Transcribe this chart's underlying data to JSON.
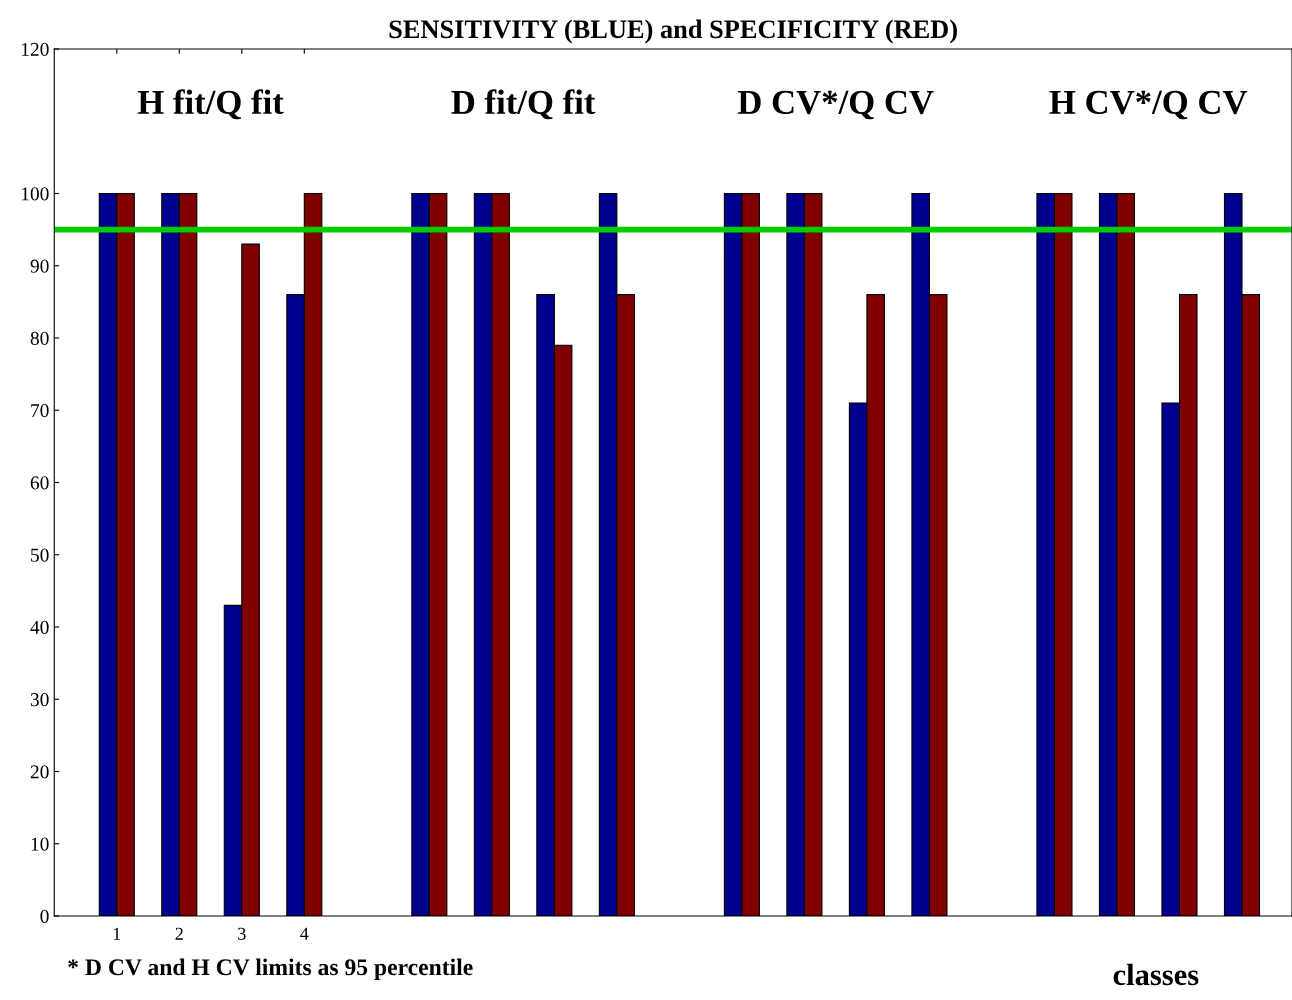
{
  "chart_data": {
    "type": "bar",
    "title": "SENSITIVITY (BLUE) and SPECIFICITY (RED)",
    "xlabel": "classes",
    "x": [
      1,
      2,
      3,
      4,
      6,
      7,
      8,
      9,
      11,
      12,
      13,
      14,
      16,
      17,
      18,
      19
    ],
    "series": [
      {
        "color": "#000090",
        "values": [
          100,
          100,
          43,
          86,
          100,
          100,
          86,
          100,
          100,
          100,
          71,
          100,
          100,
          100,
          71,
          100
        ]
      },
      {
        "color": "#800000",
        "values": [
          100,
          100,
          93,
          100,
          100,
          100,
          79,
          86,
          100,
          100,
          86,
          86,
          100,
          100,
          86,
          86
        ]
      }
    ],
    "xlim": [
      0,
      19.8
    ],
    "xticks": [
      1,
      2,
      3,
      4
    ],
    "ylim": [
      0,
      120
    ],
    "yticks": [
      0,
      10,
      20,
      30,
      40,
      50,
      60,
      70,
      80,
      90,
      100,
      120
    ],
    "ref_lines": [
      {
        "axis": "y",
        "value": 95,
        "color": "#00cc00"
      }
    ],
    "annotations": [
      "H fit/Q fit",
      "D fit/Q fit",
      "D CV*/Q CV",
      "H CV*/Q CV",
      "* D CV and H CV limits as 95 percentile"
    ],
    "grid": false,
    "legend": false
  }
}
